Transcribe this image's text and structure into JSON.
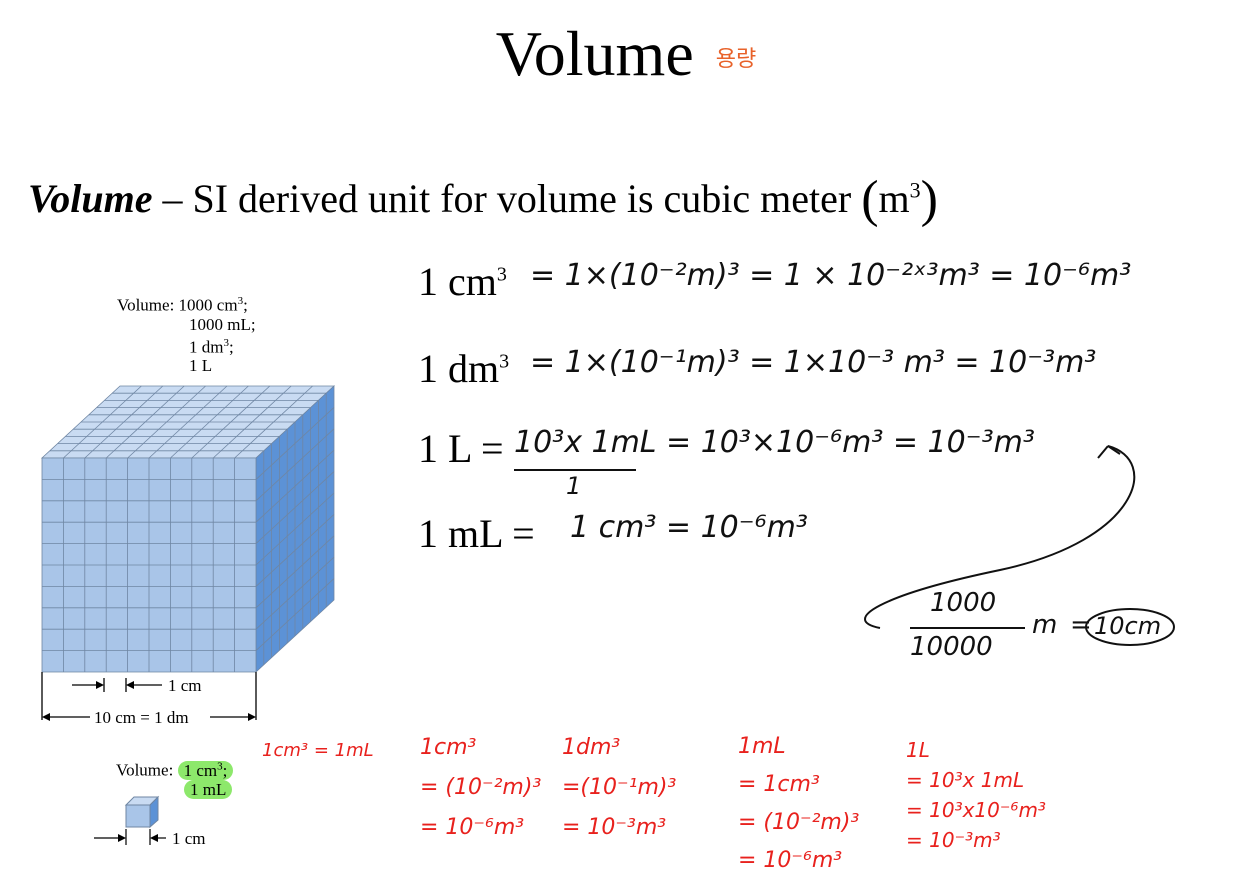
{
  "title": "Volume",
  "title_note": "용량",
  "definition": {
    "term": "Volume",
    "dash": " – ",
    "text": "SI derived unit for volume is cubic meter ",
    "paren_open": "(",
    "unit": "m",
    "unit_exp": "3",
    "paren_close": ")"
  },
  "figure": {
    "volume_label": "Volume: 1000 cm",
    "volume_lines": [
      "1000 mL;",
      "1 dm",
      "1 L"
    ],
    "cm_label": "1 cm",
    "dm_label": "10 cm = 1 dm",
    "small_volume_label": "Volume:",
    "small_volume_cm": "1 cm",
    "small_volume_ml": "1 mL",
    "small_cm_label": "1 cm"
  },
  "equations": [
    {
      "lhs": "1 cm",
      "exp": "3",
      "handwritten": "= 1×(10⁻²m)³  = 1 × 10⁻²ˣ³m³   = 10⁻⁶m³"
    },
    {
      "lhs": "1 dm",
      "exp": "3",
      "handwritten": "= 1×(10⁻¹m)³  =  1×10⁻³ m³  =   10⁻³m³"
    },
    {
      "lhs": "1 L =",
      "exp": "",
      "handwritten": "10³x  1mL   =  10³×10⁻⁶m³  =  10⁻³m³"
    },
    {
      "lhs": "1 mL =",
      "exp": "",
      "handwritten": "1 cm³  =  10⁻⁶m³"
    }
  ],
  "fraction_denominator": "1",
  "side_note": {
    "numerator": "1000",
    "denominator": "10000",
    "unit": "m",
    "equals": "=",
    "result": "10cm"
  },
  "red_note_top": "1cm³ = 1mL",
  "red_columns": [
    {
      "lines": [
        "1cm³",
        "= (10⁻²m)³",
        "= 10⁻⁶m³"
      ]
    },
    {
      "lines": [
        "1dm³",
        "=(10⁻¹m)³",
        "= 10⁻³m³"
      ]
    },
    {
      "lines": [
        "1mL",
        "=  1cm³",
        "= (10⁻²m)³",
        "= 10⁻⁶m³"
      ]
    },
    {
      "lines": [
        "1L",
        "= 10³x 1mL",
        "= 10³x10⁻⁶m³",
        "= 10⁻³m³"
      ]
    }
  ],
  "colors": {
    "cube_front": "#a9c5e8",
    "cube_top": "#c9dbf2",
    "cube_side": "#5c92d6",
    "grid_line": "#6f86a3",
    "ink_black": "#111111",
    "ink_red": "#e8211d",
    "highlight": "#8de86b",
    "title_note": "#e8622a"
  }
}
